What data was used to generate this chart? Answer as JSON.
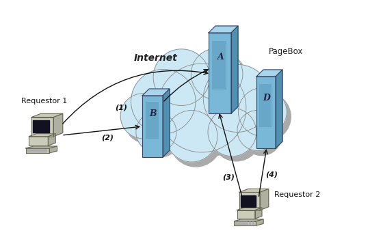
{
  "background_color": "#ffffff",
  "cloud_fill": "#cce8f4",
  "cloud_edge": "#888888",
  "cloud_shadow": "#aaaaaa",
  "server_face": "#7ab8d8",
  "server_top": "#aad4ea",
  "server_side": "#5090b0",
  "server_edge": "#334466",
  "computer_body": "#ccccbb",
  "computer_screen": "#111122",
  "computer_kbd": "#bbbbaa",
  "label_internet": "Internet",
  "label_pagebox": "PageBox",
  "label_req1": "Requestor 1",
  "label_req2": "Requestor 2",
  "arrow_labels": [
    "(1)",
    "(2)",
    "(3)",
    "(4)"
  ],
  "fig_width": 5.41,
  "fig_height": 3.63,
  "dpi": 100
}
